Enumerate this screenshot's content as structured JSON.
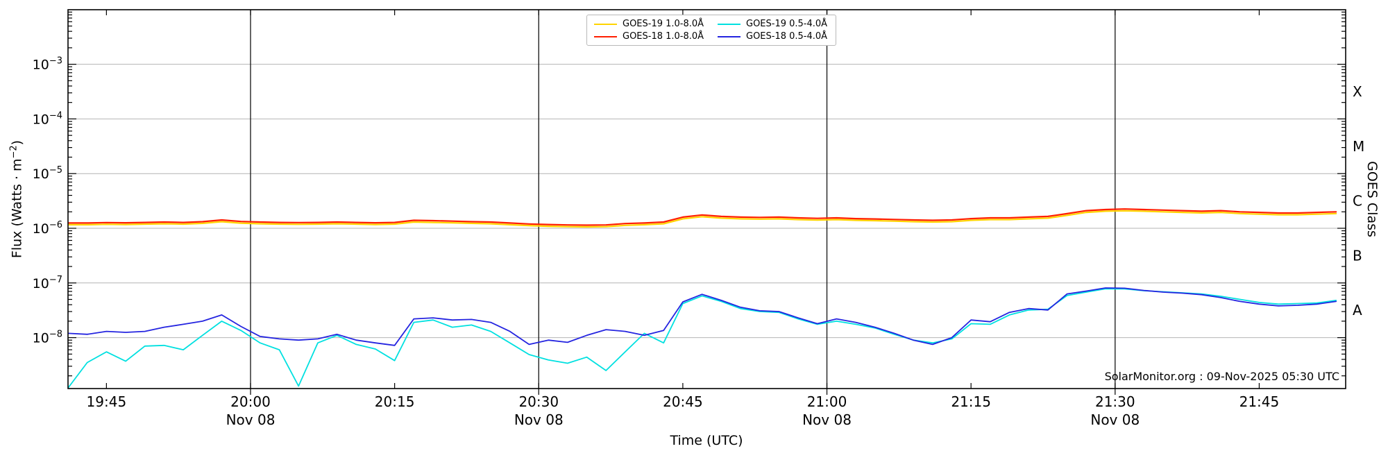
{
  "watermark": "SolarMonitor.org : 09-Nov-2025 05:30 UTC",
  "labels": {
    "x": "Time (UTC)",
    "y_left_prefix": "Flux (Watts · m",
    "y_left_sup": "−2",
    "y_left_suffix": ")",
    "y_right": "GOES Class"
  },
  "legend": {
    "entries": [
      {
        "label": "GOES-19 1.0-8.0Å",
        "color": "#ffd400"
      },
      {
        "label": "GOES-19 0.5-4.0Å",
        "color": "#00e0e0"
      },
      {
        "label": "GOES-18 1.0-8.0Å",
        "color": "#ff1e00"
      },
      {
        "label": "GOES-18 0.5-4.0Å",
        "color": "#2424e0"
      }
    ]
  },
  "chart_data": {
    "type": "line",
    "title": "",
    "xlabel": "Time (UTC)",
    "ylabel": "Flux (Watts · m⁻²)",
    "ylabel_right": "GOES Class",
    "x_axis": {
      "start": "19:41",
      "end": "21:54",
      "date_label": "Nov 08",
      "tick_labels": [
        "19:45",
        "20:00",
        "20:15",
        "20:30",
        "20:45",
        "21:00",
        "21:15",
        "21:30",
        "21:45"
      ],
      "day_lines": [
        {
          "time": "20:00",
          "label": "Nov 08"
        },
        {
          "time": "20:30",
          "label": "Nov 08"
        },
        {
          "time": "21:00",
          "label": "Nov 08"
        },
        {
          "time": "21:30",
          "label": "Nov 08"
        }
      ]
    },
    "y_axis": {
      "scale": "log",
      "min": 1e-09,
      "max": 0.01,
      "unit": "Watts per square metre",
      "tick_exponents": [
        -3,
        -4,
        -5,
        -6,
        -7,
        -8
      ],
      "gridlines": true
    },
    "right_axis": {
      "label": "GOES Class",
      "classes": [
        {
          "label": "X",
          "mid_exponent": -3.5
        },
        {
          "label": "M",
          "mid_exponent": -4.5
        },
        {
          "label": "C",
          "mid_exponent": -5.5
        },
        {
          "label": "B",
          "mid_exponent": -6.5
        },
        {
          "label": "A",
          "mid_exponent": -7.5
        }
      ]
    },
    "times": [
      "19:41",
      "19:43",
      "19:45",
      "19:47",
      "19:49",
      "19:51",
      "19:53",
      "19:55",
      "19:57",
      "19:59",
      "20:01",
      "20:03",
      "20:05",
      "20:07",
      "20:09",
      "20:11",
      "20:13",
      "20:15",
      "20:17",
      "20:19",
      "20:21",
      "20:23",
      "20:25",
      "20:27",
      "20:29",
      "20:31",
      "20:33",
      "20:35",
      "20:37",
      "20:39",
      "20:41",
      "20:43",
      "20:45",
      "20:47",
      "20:49",
      "20:51",
      "20:53",
      "20:55",
      "20:57",
      "20:59",
      "21:01",
      "21:03",
      "21:05",
      "21:07",
      "21:09",
      "21:11",
      "21:13",
      "21:15",
      "21:17",
      "21:19",
      "21:21",
      "21:23",
      "21:25",
      "21:27",
      "21:29",
      "21:31",
      "21:33",
      "21:35",
      "21:37",
      "21:39",
      "21:41",
      "21:43",
      "21:45",
      "21:47",
      "21:49",
      "21:51",
      "21:53"
    ],
    "series": [
      {
        "name": "GOES-19 1.0-8.0Å",
        "color": "#ffd400",
        "width": 2.2,
        "scale": 1e-06,
        "values": [
          1.16,
          1.16,
          1.18,
          1.17,
          1.19,
          1.21,
          1.19,
          1.23,
          1.32,
          1.24,
          1.21,
          1.19,
          1.18,
          1.19,
          1.21,
          1.19,
          1.17,
          1.19,
          1.3,
          1.28,
          1.26,
          1.23,
          1.21,
          1.16,
          1.12,
          1.09,
          1.07,
          1.06,
          1.07,
          1.13,
          1.16,
          1.21,
          1.49,
          1.63,
          1.53,
          1.49,
          1.47,
          1.49,
          1.44,
          1.41,
          1.44,
          1.4,
          1.38,
          1.35,
          1.32,
          1.3,
          1.32,
          1.4,
          1.44,
          1.44,
          1.49,
          1.53,
          1.72,
          1.95,
          2.05,
          2.09,
          2.05,
          2.0,
          1.95,
          1.91,
          1.95,
          1.86,
          1.81,
          1.77,
          1.77,
          1.81,
          1.86
        ]
      },
      {
        "name": "GOES-18 1.0-8.0Å",
        "color": "#ff1e00",
        "width": 2.2,
        "scale": 1e-06,
        "values": [
          1.25,
          1.25,
          1.27,
          1.26,
          1.28,
          1.3,
          1.28,
          1.32,
          1.42,
          1.33,
          1.3,
          1.28,
          1.27,
          1.28,
          1.3,
          1.28,
          1.26,
          1.28,
          1.4,
          1.38,
          1.35,
          1.32,
          1.3,
          1.25,
          1.2,
          1.17,
          1.15,
          1.14,
          1.15,
          1.22,
          1.25,
          1.3,
          1.6,
          1.75,
          1.65,
          1.6,
          1.58,
          1.6,
          1.55,
          1.52,
          1.55,
          1.5,
          1.48,
          1.45,
          1.42,
          1.4,
          1.42,
          1.5,
          1.55,
          1.55,
          1.6,
          1.65,
          1.85,
          2.1,
          2.2,
          2.25,
          2.2,
          2.15,
          2.1,
          2.05,
          2.1,
          2.0,
          1.95,
          1.9,
          1.9,
          1.95,
          2.0
        ]
      },
      {
        "name": "GOES-19 0.5-4.0Å",
        "color": "#00e0e0",
        "width": 1.8,
        "scale": 1e-09,
        "values": [
          1.2,
          3.5,
          5.5,
          3.7,
          7,
          7.2,
          6,
          11,
          20,
          13.5,
          8,
          6,
          1.3,
          8,
          11,
          7.5,
          6.2,
          3.8,
          19,
          21,
          15.5,
          17,
          13,
          8,
          4.9,
          3.9,
          3.4,
          4.4,
          2.5,
          5.5,
          12,
          8,
          42,
          58,
          46,
          34,
          30,
          29,
          22,
          17.5,
          20,
          17.5,
          15,
          11.5,
          9,
          8,
          9.5,
          18,
          17.5,
          26,
          32,
          33,
          59,
          68,
          78,
          78,
          72,
          69,
          66,
          63,
          57,
          50,
          44,
          41,
          42,
          43,
          48
        ]
      },
      {
        "name": "GOES-18 0.5-4.0Å",
        "color": "#2424e0",
        "width": 1.8,
        "scale": 1e-09,
        "values": [
          12,
          11.5,
          13,
          12.5,
          13,
          15.5,
          17.5,
          20,
          26,
          16,
          10.5,
          9.5,
          9,
          9.5,
          11.5,
          9,
          8,
          7.2,
          22,
          23,
          21,
          21.5,
          19,
          13,
          7.5,
          9,
          8.2,
          11,
          14,
          13,
          11,
          13.5,
          45,
          62,
          48,
          36,
          31,
          30,
          23,
          18,
          22,
          19,
          15.5,
          12,
          9,
          7.5,
          10,
          21,
          19.5,
          29,
          34,
          32,
          63,
          71,
          81,
          80,
          73,
          68,
          65,
          61,
          54,
          46,
          41,
          38,
          39,
          41,
          46
        ]
      }
    ]
  }
}
